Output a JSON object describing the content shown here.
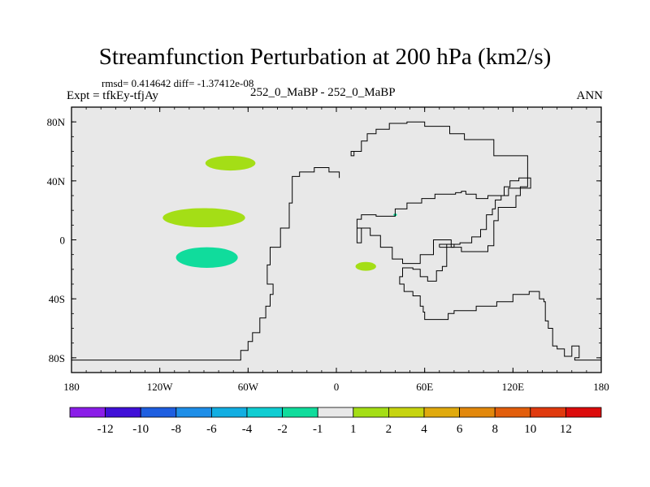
{
  "chart_data": {
    "type": "heatmap",
    "title": "Streamfunction Perturbation at 200 hPa (km2/s)",
    "stats_line": "rmsd= 0.414642 diff= -1.37412e-08",
    "left_subtitle": "Expt = tfkEy-tfjAy",
    "center_subtitle": "252_0_MaBP - 252_0_MaBP",
    "right_subtitle": "ANN",
    "xlim": [
      -180,
      180
    ],
    "ylim": [
      -90,
      90
    ],
    "x_ticks": [
      {
        "value": -180,
        "label": "180"
      },
      {
        "value": -120,
        "label": "120W"
      },
      {
        "value": -60,
        "label": "60W"
      },
      {
        "value": 0,
        "label": "0"
      },
      {
        "value": 60,
        "label": "60E"
      },
      {
        "value": 120,
        "label": "120E"
      },
      {
        "value": 180,
        "label": "180"
      }
    ],
    "y_ticks": [
      {
        "value": 80,
        "label": "80N"
      },
      {
        "value": 40,
        "label": "40N"
      },
      {
        "value": 0,
        "label": "0"
      },
      {
        "value": -40,
        "label": "40S"
      },
      {
        "value": -80,
        "label": "80S"
      }
    ],
    "background_value_range": [
      -1,
      1
    ],
    "features": [
      {
        "lon": -72,
        "lat": 52,
        "rx": 17,
        "ry": 5,
        "value": 1.5
      },
      {
        "lon": -90,
        "lat": 15,
        "rx": 28,
        "ry": 6.5,
        "value": 1.5
      },
      {
        "lon": -88,
        "lat": -12,
        "rx": 21,
        "ry": 7,
        "value": -1.5
      },
      {
        "lon": 20,
        "lat": -18,
        "rx": 7,
        "ry": 3,
        "value": 1.5
      },
      {
        "lon": 40,
        "lat": 17,
        "rx": 1.2,
        "ry": 0.8,
        "value": -1.5
      }
    ],
    "coastline": [
      [
        [
          -180,
          -81.5
        ],
        [
          -65,
          -81.5
        ],
        [
          -65,
          -75
        ],
        [
          -60,
          -75
        ],
        [
          -60,
          -69
        ],
        [
          -57,
          -69
        ],
        [
          -57,
          -63
        ],
        [
          -52,
          -63
        ],
        [
          -52,
          -53
        ],
        [
          -48,
          -53
        ],
        [
          -48,
          -45
        ],
        [
          -45,
          -45
        ],
        [
          -45,
          -37
        ],
        [
          -43,
          -37
        ],
        [
          -43,
          -30
        ],
        [
          -47,
          -30
        ],
        [
          -47,
          -17
        ],
        [
          -45,
          -17
        ],
        [
          -45,
          -5
        ],
        [
          -38,
          -5
        ],
        [
          -38,
          8
        ],
        [
          -32,
          8
        ],
        [
          -32,
          25
        ],
        [
          -30,
          25
        ],
        [
          -30,
          43
        ],
        [
          -25,
          43
        ],
        [
          -25,
          46
        ],
        [
          -15,
          46
        ],
        [
          -15,
          49
        ],
        [
          -5,
          49
        ],
        [
          -5,
          46
        ],
        [
          2,
          46
        ],
        [
          2,
          42
        ]
      ],
      [
        [
          14,
          60
        ],
        [
          10,
          60
        ],
        [
          10,
          57
        ],
        [
          12,
          57
        ],
        [
          12,
          60
        ],
        [
          17,
          60
        ],
        [
          17,
          67
        ],
        [
          21,
          67
        ],
        [
          21,
          72
        ],
        [
          27,
          72
        ],
        [
          27,
          75
        ],
        [
          36,
          75
        ],
        [
          36,
          79
        ],
        [
          48,
          79
        ],
        [
          48,
          80
        ],
        [
          60,
          80
        ],
        [
          60,
          77
        ],
        [
          77,
          77
        ],
        [
          77,
          72
        ],
        [
          87,
          72
        ],
        [
          87,
          68
        ],
        [
          107,
          68
        ],
        [
          107,
          57
        ],
        [
          130,
          57
        ],
        [
          130,
          36
        ],
        [
          125,
          36
        ],
        [
          125,
          30
        ],
        [
          122,
          30
        ],
        [
          122,
          22
        ],
        [
          110,
          22
        ],
        [
          110,
          13
        ],
        [
          107,
          13
        ],
        [
          107,
          -4
        ],
        [
          103,
          -4
        ],
        [
          103,
          -8
        ],
        [
          85,
          -8
        ],
        [
          85,
          -5
        ],
        [
          78,
          -5
        ],
        [
          78,
          0
        ],
        [
          66,
          0
        ],
        [
          66,
          -10
        ],
        [
          57,
          -10
        ],
        [
          57,
          -16
        ],
        [
          45,
          -16
        ],
        [
          45,
          -13
        ],
        [
          38,
          -13
        ],
        [
          38,
          -5
        ],
        [
          30,
          -5
        ],
        [
          30,
          3
        ],
        [
          23,
          3
        ],
        [
          23,
          8
        ],
        [
          14,
          8
        ],
        [
          14,
          -2
        ],
        [
          17,
          -2
        ],
        [
          17,
          8
        ],
        [
          14,
          8
        ],
        [
          14,
          14
        ],
        [
          17,
          14
        ],
        [
          17,
          17
        ],
        [
          27,
          17
        ],
        [
          27,
          16
        ],
        [
          40,
          16
        ],
        [
          40,
          21
        ],
        [
          48,
          21
        ],
        [
          48,
          25
        ],
        [
          58,
          25
        ],
        [
          58,
          28
        ],
        [
          67,
          28
        ],
        [
          67,
          31
        ],
        [
          81,
          31
        ],
        [
          81,
          32
        ],
        [
          85,
          32
        ],
        [
          85,
          33
        ],
        [
          88,
          33
        ],
        [
          88,
          31
        ],
        [
          95,
          31
        ],
        [
          95,
          28
        ],
        [
          103,
          28
        ],
        [
          103,
          30
        ],
        [
          117,
          30
        ],
        [
          117,
          35
        ],
        [
          132,
          35
        ],
        [
          132,
          42
        ],
        [
          124,
          42
        ],
        [
          124,
          40
        ],
        [
          118,
          40
        ],
        [
          118,
          36
        ],
        [
          114,
          36
        ],
        [
          114,
          30
        ],
        [
          112,
          30
        ],
        [
          112,
          27
        ],
        [
          108,
          27
        ],
        [
          108,
          21
        ],
        [
          106,
          21
        ],
        [
          106,
          17
        ],
        [
          102,
          17
        ],
        [
          102,
          7
        ],
        [
          98,
          7
        ],
        [
          98,
          2
        ],
        [
          92,
          2
        ],
        [
          92,
          -2
        ],
        [
          84,
          -2
        ],
        [
          84,
          -3
        ],
        [
          75,
          -3
        ],
        [
          75,
          -18
        ],
        [
          72,
          -18
        ],
        [
          72,
          -21
        ],
        [
          68,
          -21
        ],
        [
          68,
          -28
        ],
        [
          62,
          -28
        ],
        [
          62,
          -25
        ],
        [
          57,
          -25
        ],
        [
          57,
          -20
        ],
        [
          52,
          -20
        ],
        [
          52,
          -19
        ],
        [
          45,
          -19
        ],
        [
          45,
          -25
        ],
        [
          43,
          -25
        ],
        [
          43,
          -30
        ],
        [
          46,
          -30
        ],
        [
          46,
          -35
        ],
        [
          52,
          -35
        ],
        [
          52,
          -38
        ],
        [
          57,
          -38
        ],
        [
          57,
          -45
        ],
        [
          59,
          -45
        ],
        [
          59,
          -49
        ],
        [
          60,
          -49
        ],
        [
          60,
          -54
        ],
        [
          76,
          -54
        ],
        [
          76,
          -50
        ],
        [
          80,
          -50
        ],
        [
          80,
          -48
        ],
        [
          95,
          -48
        ],
        [
          95,
          -45
        ],
        [
          109,
          -45
        ],
        [
          109,
          -42
        ],
        [
          120,
          -42
        ],
        [
          120,
          -37
        ],
        [
          131,
          -37
        ],
        [
          131,
          -35
        ],
        [
          138,
          -35
        ],
        [
          138,
          -40
        ],
        [
          141,
          -40
        ],
        [
          141,
          -42
        ],
        [
          142,
          -42
        ],
        [
          142,
          -55
        ],
        [
          144,
          -55
        ],
        [
          144,
          -60
        ],
        [
          147,
          -60
        ],
        [
          147,
          -72
        ],
        [
          150,
          -72
        ],
        [
          150,
          -74
        ],
        [
          155,
          -74
        ],
        [
          155,
          -79
        ],
        [
          160,
          -79
        ],
        [
          160,
          -72
        ],
        [
          165,
          -72
        ],
        [
          165,
          -80
        ],
        [
          162,
          -80
        ],
        [
          162,
          -81.5
        ],
        [
          180,
          -81.5
        ]
      ],
      [
        [
          70,
          -5
        ],
        [
          70,
          -3
        ],
        [
          80,
          -3
        ],
        [
          80,
          -5
        ],
        [
          70,
          -5
        ]
      ]
    ],
    "colorbar": {
      "colors": [
        "#8a1de8",
        "#4010d8",
        "#1e5ee0",
        "#1e8ee8",
        "#12aee2",
        "#10cdd2",
        "#10dc9c",
        "#e8e8e8",
        "#a4de16",
        "#c6d410",
        "#e0aa0e",
        "#e2880c",
        "#e25e0c",
        "#e03a0e",
        "#dc0c0c"
      ],
      "boundaries": [
        "-12",
        "-10",
        "-8",
        "-6",
        "-4",
        "-2",
        "-1",
        "1",
        "2",
        "4",
        "6",
        "8",
        "10",
        "12"
      ]
    }
  }
}
